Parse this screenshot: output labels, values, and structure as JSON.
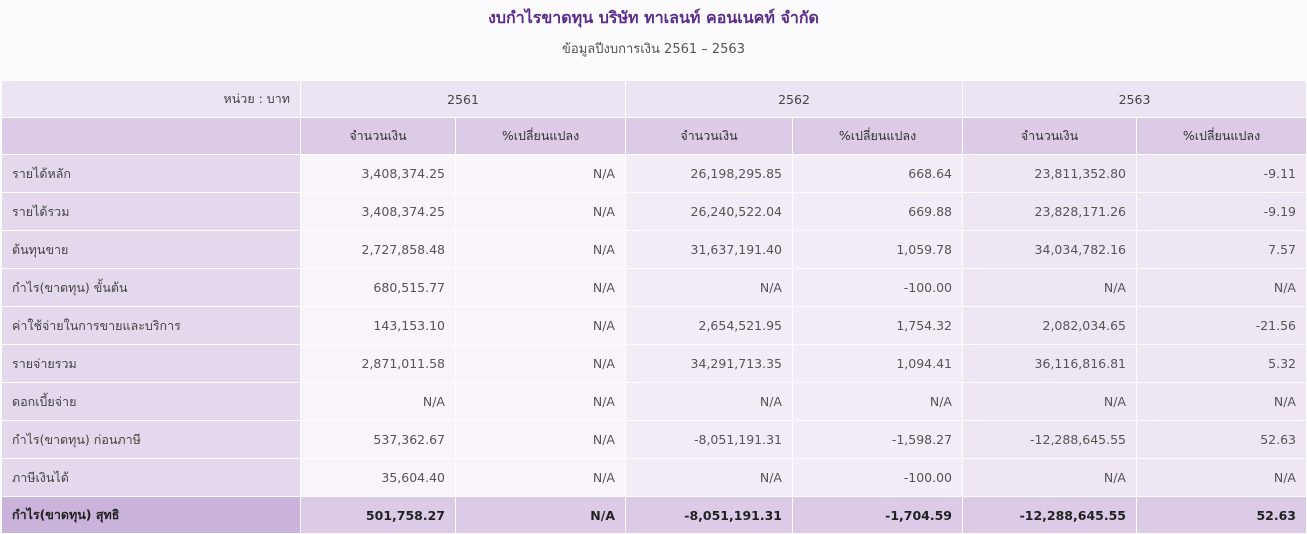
{
  "title": "งบกำไรขาดทุน บริษัท ทาเลนท์ คอนเนคท์ จำกัด",
  "subtitle": "ข้อมูลปีงบการเงิน 2561 – 2563",
  "table": {
    "unit_label": "หน่วย : บาท",
    "years": [
      "2561",
      "2562",
      "2563"
    ],
    "sub_headers": [
      "จำนวนเงิน",
      "%เปลี่ยนแปลง",
      "จำนวนเงิน",
      "%เปลี่ยนแปลง",
      "จำนวนเงิน",
      "%เปลี่ยนแปลง"
    ],
    "rows": [
      {
        "label": "รายได้หลัก",
        "cells": [
          "3,408,374.25",
          "N/A",
          "26,198,295.85",
          "668.64",
          "23,811,352.80",
          "-9.11"
        ]
      },
      {
        "label": "รายได้รวม",
        "cells": [
          "3,408,374.25",
          "N/A",
          "26,240,522.04",
          "669.88",
          "23,828,171.26",
          "-9.19"
        ]
      },
      {
        "label": "ต้นทุนขาย",
        "cells": [
          "2,727,858.48",
          "N/A",
          "31,637,191.40",
          "1,059.78",
          "34,034,782.16",
          "7.57"
        ]
      },
      {
        "label": "กำไร(ขาดทุน) ขั้นต้น",
        "cells": [
          "680,515.77",
          "N/A",
          "N/A",
          "-100.00",
          "N/A",
          "N/A"
        ]
      },
      {
        "label": "ค่าใช้จ่ายในการขายและบริการ",
        "cells": [
          "143,153.10",
          "N/A",
          "2,654,521.95",
          "1,754.32",
          "2,082,034.65",
          "-21.56"
        ]
      },
      {
        "label": "รายจ่ายรวม",
        "cells": [
          "2,871,011.58",
          "N/A",
          "34,291,713.35",
          "1,094.41",
          "36,116,816.81",
          "5.32"
        ]
      },
      {
        "label": "ดอกเบี้ยจ่าย",
        "cells": [
          "N/A",
          "N/A",
          "N/A",
          "N/A",
          "N/A",
          "N/A"
        ]
      },
      {
        "label": "กำไร(ขาดทุน) ก่อนภาษี",
        "cells": [
          "537,362.67",
          "N/A",
          "-8,051,191.31",
          "-1,598.27",
          "-12,288,645.55",
          "52.63"
        ]
      },
      {
        "label": "ภาษีเงินได้",
        "cells": [
          "35,604.40",
          "N/A",
          "N/A",
          "-100.00",
          "N/A",
          "N/A"
        ]
      }
    ],
    "total": {
      "label": "กำไร(ขาดทุน) สุทธิ",
      "cells": [
        "501,758.27",
        "N/A",
        "-8,051,191.31",
        "-1,704.59",
        "-12,288,645.55",
        "52.63"
      ]
    }
  }
}
